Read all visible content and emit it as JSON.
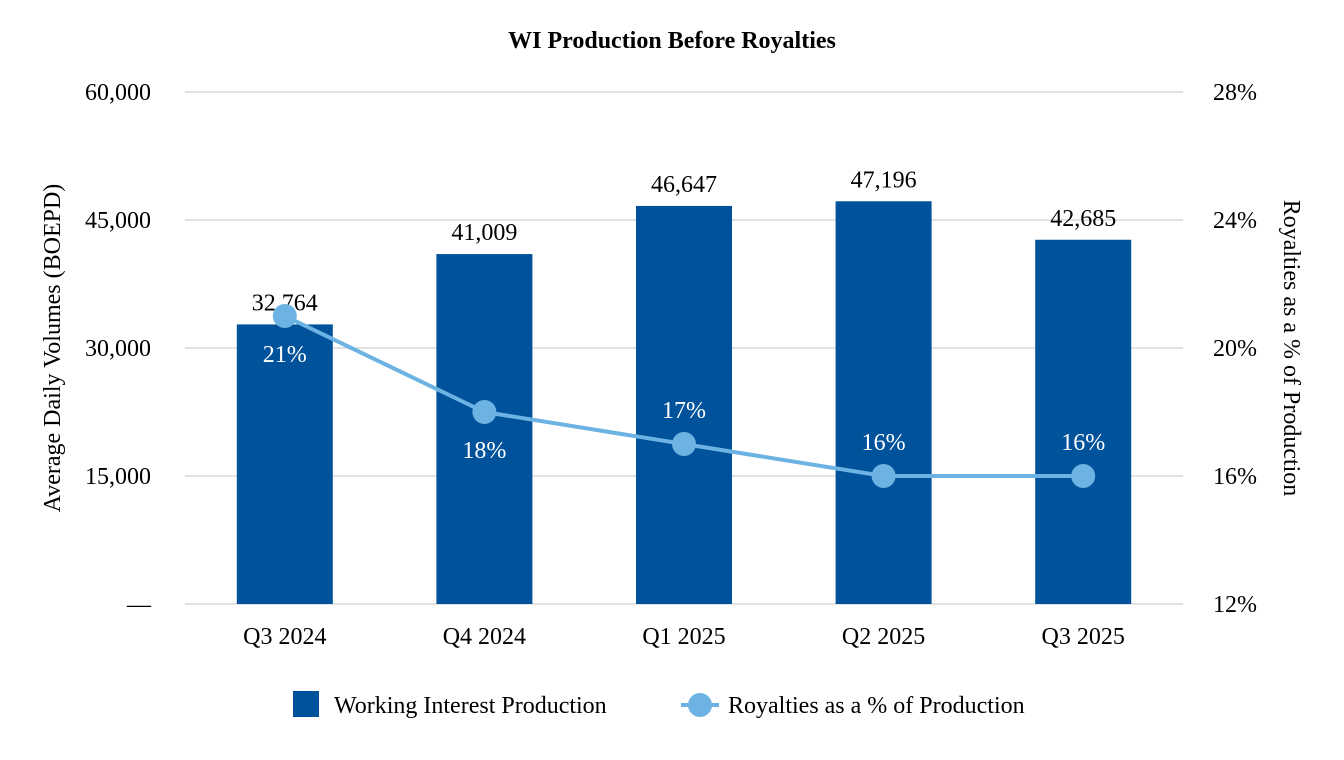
{
  "chart_data": {
    "type": "bar",
    "title": "WI Production Before Royalties",
    "categories": [
      "Q3 2024",
      "Q4 2024",
      "Q1 2025",
      "Q2 2025",
      "Q3 2025"
    ],
    "series": [
      {
        "name": "Working Interest Production",
        "type": "bar",
        "axis": "left",
        "values": [
          32764,
          41009,
          46647,
          47196,
          42685
        ],
        "labels": [
          "32,764",
          "41,009",
          "46,647",
          "47,196",
          "42,685"
        ],
        "color": "#00529b"
      },
      {
        "name": "Royalties as a % of Production",
        "type": "line",
        "axis": "right",
        "values": [
          21,
          18,
          17,
          16,
          16
        ],
        "labels": [
          "21%",
          "18%",
          "17%",
          "16%",
          "16%"
        ],
        "label_positions": [
          "below",
          "below",
          "above",
          "above",
          "above"
        ],
        "label_colors": [
          "#ffffff",
          "#ffffff",
          "#ffffff",
          "#ffffff",
          "#ffffff"
        ],
        "color": "#6cb3e3"
      }
    ],
    "ylabel": "Average Daily Volumes (BOEPD)",
    "y2label": "Royalties as a % of Production",
    "ylim": [
      0,
      60000
    ],
    "y2lim": [
      12,
      28
    ],
    "yticks": [
      "—",
      "15,000",
      "30,000",
      "45,000",
      "60,000"
    ],
    "y2ticks": [
      "12%",
      "16%",
      "20%",
      "24%",
      "28%"
    ],
    "grid": true,
    "legend_position": "bottom"
  }
}
